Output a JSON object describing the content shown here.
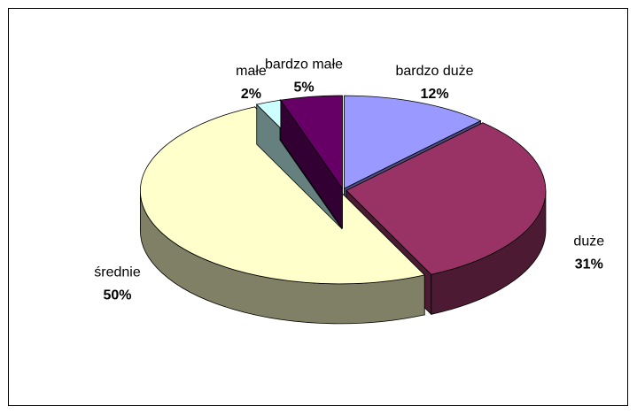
{
  "chart_data": {
    "type": "pie",
    "categories": [
      "bardzo duże",
      "duże",
      "średnie",
      "małe",
      "bardzo małe"
    ],
    "values": [
      12,
      31,
      50,
      2,
      5
    ],
    "value_labels": [
      "12%",
      "31%",
      "50%",
      "2%",
      "5%"
    ],
    "colors": [
      "#9999ff",
      "#993366",
      "#ffffcc",
      "#ccffff",
      "#660066"
    ]
  }
}
